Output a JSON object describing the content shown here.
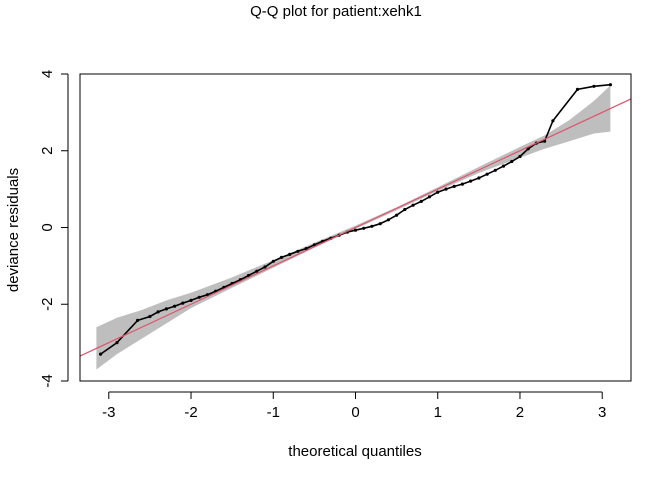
{
  "chart_data": {
    "type": "scatter",
    "title": "Q-Q plot for patient:xehk1",
    "xlabel": "theoretical quantiles",
    "ylabel": "deviance residuals",
    "xlim": [
      -3.35,
      3.35
    ],
    "ylim": [
      -4.0,
      4.0
    ],
    "x_ticks": [
      -3,
      -2,
      -1,
      0,
      1,
      2,
      3
    ],
    "y_ticks": [
      -4,
      -2,
      0,
      2,
      4
    ],
    "grid": false,
    "colors": {
      "reference_line": "#df536b",
      "confidence_band": "#bebebe",
      "points": "#000000"
    },
    "reference_line": {
      "intercept": 0.0,
      "slope": 1.0
    },
    "confidence_band": {
      "x": [
        -3.15,
        -2.9,
        -2.6,
        -2.3,
        -2.0,
        -1.5,
        -1.0,
        -0.5,
        0.0,
        0.5,
        1.0,
        1.5,
        2.0,
        2.3,
        2.6,
        2.9,
        3.1
      ],
      "lower": [
        -3.7,
        -3.3,
        -2.9,
        -2.5,
        -2.1,
        -1.57,
        -1.05,
        -0.53,
        -0.04,
        0.45,
        0.95,
        1.42,
        1.82,
        2.05,
        2.25,
        2.45,
        2.5
      ],
      "upper": [
        -2.6,
        -2.35,
        -2.15,
        -1.9,
        -1.7,
        -1.3,
        -0.85,
        -0.4,
        0.05,
        0.53,
        1.05,
        1.58,
        2.1,
        2.4,
        2.8,
        3.3,
        3.7
      ]
    },
    "points": {
      "x": [
        -3.1,
        -2.9,
        -2.65,
        -2.5,
        -2.4,
        -2.3,
        -2.2,
        -2.1,
        -2.0,
        -1.9,
        -1.8,
        -1.7,
        -1.6,
        -1.5,
        -1.4,
        -1.3,
        -1.2,
        -1.1,
        -1.0,
        -0.9,
        -0.8,
        -0.7,
        -0.6,
        -0.5,
        -0.4,
        -0.3,
        -0.2,
        -0.1,
        0.0,
        0.1,
        0.2,
        0.3,
        0.4,
        0.5,
        0.6,
        0.7,
        0.8,
        0.9,
        1.0,
        1.1,
        1.2,
        1.3,
        1.4,
        1.5,
        1.6,
        1.7,
        1.8,
        1.9,
        2.0,
        2.1,
        2.2,
        2.3,
        2.4,
        2.7,
        2.9,
        3.1
      ],
      "y": [
        -3.3,
        -3.0,
        -2.42,
        -2.32,
        -2.2,
        -2.12,
        -2.05,
        -1.97,
        -1.9,
        -1.82,
        -1.75,
        -1.66,
        -1.56,
        -1.46,
        -1.36,
        -1.25,
        -1.14,
        -1.03,
        -0.88,
        -0.78,
        -0.7,
        -0.62,
        -0.55,
        -0.45,
        -0.36,
        -0.28,
        -0.2,
        -0.12,
        -0.07,
        -0.02,
        0.03,
        0.1,
        0.2,
        0.32,
        0.47,
        0.58,
        0.68,
        0.8,
        0.92,
        1.0,
        1.07,
        1.13,
        1.21,
        1.29,
        1.39,
        1.49,
        1.6,
        1.72,
        1.85,
        2.05,
        2.2,
        2.25,
        2.78,
        3.6,
        3.68,
        3.72
      ]
    }
  }
}
